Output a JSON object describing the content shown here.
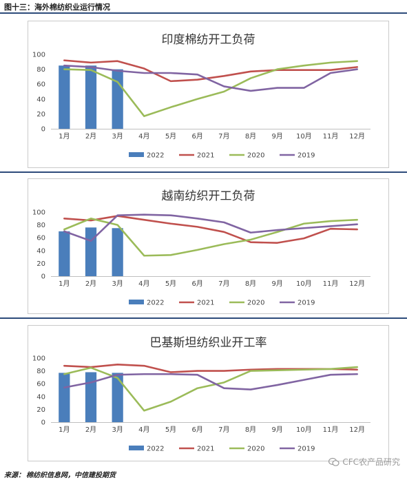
{
  "figure_title": "图十三：海外棉纺织业运行情况",
  "source": {
    "label": "来源：",
    "text": "棉纺织信息网，中信建投期货"
  },
  "watermark": "CFC农产品研究",
  "chart_data": [
    {
      "type": "bar",
      "title": "印度棉纺开工负荷",
      "categories": [
        "1月",
        "2月",
        "3月",
        "4月",
        "5月",
        "6月",
        "7月",
        "8月",
        "9月",
        "10月",
        "11月",
        "12月"
      ],
      "ylim": [
        0,
        100
      ],
      "yticks": [
        0,
        20,
        40,
        60,
        80,
        100
      ],
      "legend": "bottom",
      "series": [
        {
          "name": "2022",
          "kind": "bar",
          "color": "#4a7ebb",
          "values": [
            85,
            85,
            80,
            null,
            null,
            null,
            null,
            null,
            null,
            null,
            null,
            null
          ]
        },
        {
          "name": "2021",
          "kind": "line",
          "color": "#c0504d",
          "values": [
            92,
            89,
            91,
            81,
            64,
            66,
            71,
            77,
            79,
            79,
            79,
            83
          ]
        },
        {
          "name": "2020",
          "kind": "line",
          "color": "#9bbb59",
          "values": [
            80,
            79,
            63,
            17,
            29,
            40,
            50,
            68,
            80,
            85,
            89,
            91
          ]
        },
        {
          "name": "2019",
          "kind": "line",
          "color": "#8064a2",
          "values": [
            85,
            83,
            78,
            75,
            75,
            73,
            57,
            51,
            55,
            55,
            75,
            80
          ]
        }
      ]
    },
    {
      "type": "bar",
      "title": "越南纺织开工负荷",
      "categories": [
        "1月",
        "2月",
        "3月",
        "4月",
        "5月",
        "6月",
        "7月",
        "8月",
        "9月",
        "10月",
        "11月",
        "12月"
      ],
      "ylim": [
        0,
        100
      ],
      "yticks": [
        0,
        20,
        40,
        60,
        80,
        100
      ],
      "legend": "bottom",
      "series": [
        {
          "name": "2022",
          "kind": "bar",
          "color": "#4a7ebb",
          "values": [
            70,
            76,
            75,
            null,
            null,
            null,
            null,
            null,
            null,
            null,
            null,
            null
          ]
        },
        {
          "name": "2021",
          "kind": "line",
          "color": "#c0504d",
          "values": [
            90,
            87,
            94,
            88,
            82,
            77,
            69,
            53,
            52,
            59,
            74,
            73
          ]
        },
        {
          "name": "2020",
          "kind": "line",
          "color": "#9bbb59",
          "values": [
            73,
            90,
            80,
            32,
            33,
            41,
            50,
            57,
            69,
            82,
            86,
            88
          ]
        },
        {
          "name": "2019",
          "kind": "line",
          "color": "#8064a2",
          "values": [
            70,
            55,
            95,
            96,
            95,
            90,
            84,
            68,
            72,
            75,
            78,
            81
          ]
        }
      ]
    },
    {
      "type": "bar",
      "title": "巴基斯坦纺织业开工率",
      "categories": [
        "1月",
        "2月",
        "3月",
        "4月",
        "5月",
        "6月",
        "7月",
        "8月",
        "9月",
        "10月",
        "11月",
        "12月"
      ],
      "ylim": [
        0,
        100
      ],
      "yticks": [
        0,
        20,
        40,
        60,
        80,
        100
      ],
      "legend": "bottom",
      "series": [
        {
          "name": "2022",
          "kind": "bar",
          "color": "#4a7ebb",
          "values": [
            77,
            78,
            77,
            null,
            null,
            null,
            null,
            null,
            null,
            null,
            null,
            null
          ]
        },
        {
          "name": "2021",
          "kind": "line",
          "color": "#c0504d",
          "values": [
            88,
            86,
            90,
            88,
            78,
            80,
            80,
            82,
            83,
            83,
            83,
            82
          ]
        },
        {
          "name": "2020",
          "kind": "line",
          "color": "#9bbb59",
          "values": [
            75,
            85,
            69,
            18,
            32,
            53,
            62,
            80,
            81,
            82,
            83,
            86
          ]
        },
        {
          "name": "2019",
          "kind": "line",
          "color": "#8064a2",
          "values": [
            54,
            62,
            74,
            75,
            75,
            74,
            53,
            51,
            58,
            66,
            74,
            75
          ]
        }
      ]
    }
  ]
}
